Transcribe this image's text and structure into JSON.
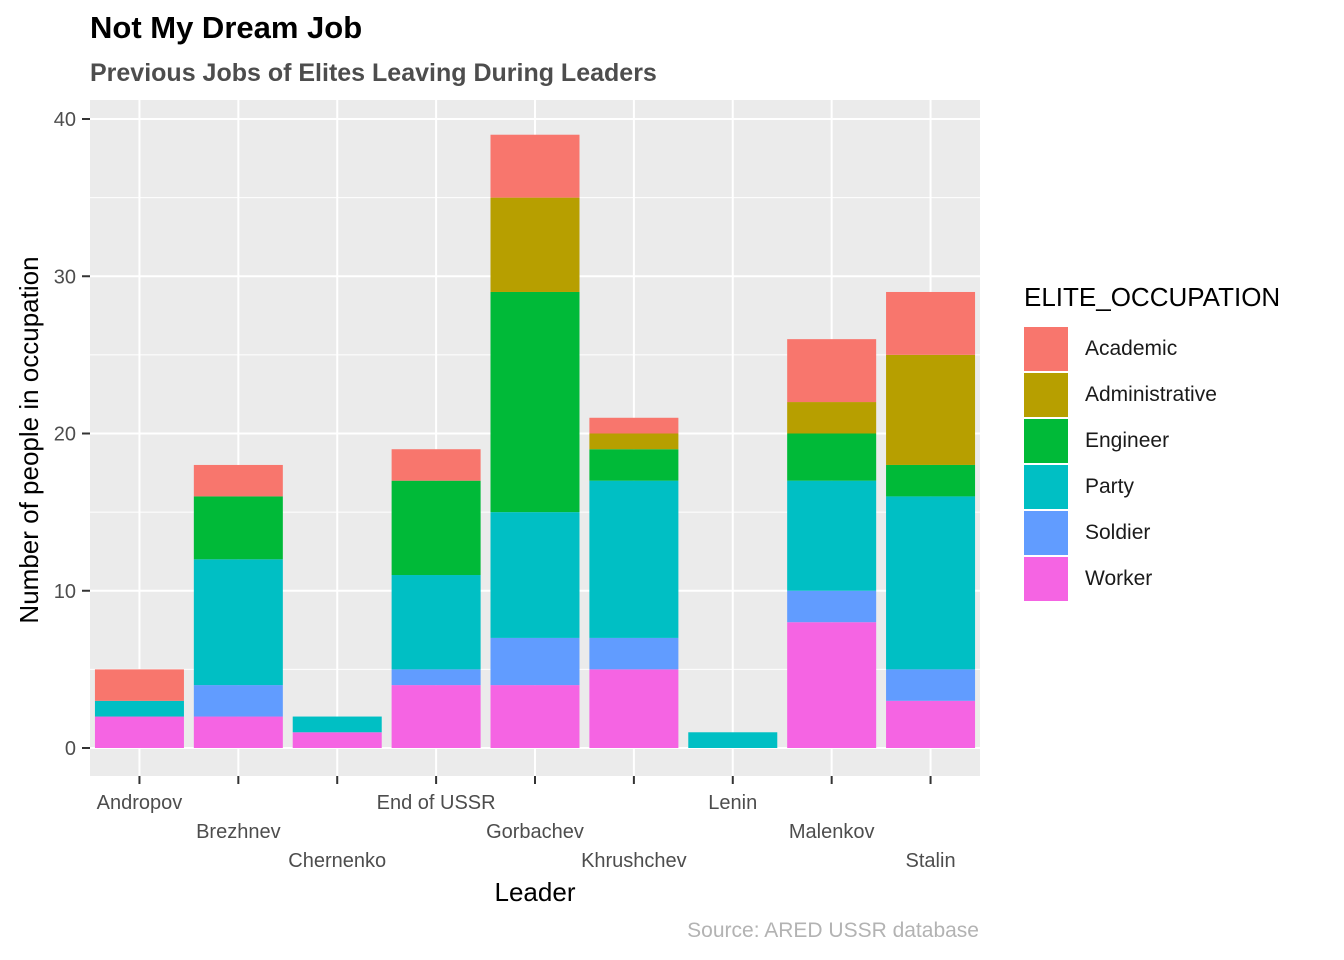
{
  "chart_data": {
    "type": "bar",
    "stacked": true,
    "title": "Not My Dream Job",
    "subtitle": "Previous Jobs of Elites Leaving During Leaders",
    "xlabel": "Leader",
    "ylabel": "Number of people in occupation",
    "caption": "Source: ARED USSR database",
    "ylim": [
      0,
      40
    ],
    "yticks": [
      0,
      10,
      20,
      30,
      40
    ],
    "grid": true,
    "legend_position": "right",
    "legend_title": "ELITE_OCCUPATION",
    "categories": [
      "Andropov",
      "Brezhnev",
      "Chernenko",
      "End of USSR",
      "Gorbachev",
      "Khrushchev",
      "Lenin",
      "Malenkov",
      "Stalin"
    ],
    "series": [
      {
        "name": "Worker",
        "color": "#F564E3",
        "values": [
          2,
          2,
          1,
          4,
          4,
          5,
          0,
          8,
          3
        ]
      },
      {
        "name": "Soldier",
        "color": "#619CFF",
        "values": [
          0,
          2,
          0,
          1,
          3,
          2,
          0,
          2,
          2
        ]
      },
      {
        "name": "Party",
        "color": "#00BFC4",
        "values": [
          1,
          8,
          1,
          6,
          8,
          10,
          1,
          7,
          11
        ]
      },
      {
        "name": "Engineer",
        "color": "#00BA38",
        "values": [
          0,
          4,
          0,
          6,
          14,
          2,
          0,
          3,
          2
        ]
      },
      {
        "name": "Administrative",
        "color": "#B79F00",
        "values": [
          0,
          0,
          0,
          0,
          6,
          1,
          0,
          2,
          7
        ]
      },
      {
        "name": "Academic",
        "color": "#F8766D",
        "values": [
          2,
          2,
          0,
          2,
          4,
          1,
          0,
          4,
          4
        ]
      }
    ],
    "legend_order": [
      "Academic",
      "Administrative",
      "Engineer",
      "Party",
      "Soldier",
      "Worker"
    ]
  }
}
